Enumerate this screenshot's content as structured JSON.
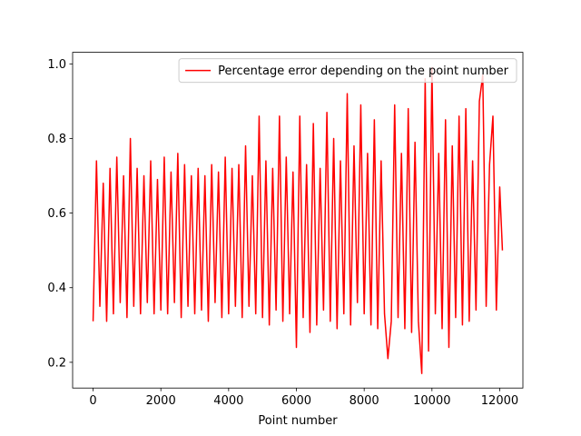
{
  "chart_data": {
    "type": "line",
    "xlabel": "Point number",
    "x": [
      0,
      100,
      200,
      300,
      400,
      500,
      600,
      700,
      800,
      900,
      1000,
      1100,
      1200,
      1300,
      1400,
      1500,
      1600,
      1700,
      1800,
      1900,
      2000,
      2100,
      2200,
      2300,
      2400,
      2500,
      2600,
      2700,
      2800,
      2900,
      3000,
      3100,
      3200,
      3300,
      3400,
      3500,
      3600,
      3700,
      3800,
      3900,
      4000,
      4100,
      4200,
      4300,
      4400,
      4500,
      4600,
      4700,
      4800,
      4900,
      5000,
      5100,
      5200,
      5300,
      5400,
      5500,
      5600,
      5700,
      5800,
      5900,
      6000,
      6100,
      6200,
      6300,
      6400,
      6500,
      6600,
      6700,
      6800,
      6900,
      7000,
      7100,
      7200,
      7300,
      7400,
      7500,
      7600,
      7700,
      7800,
      7900,
      8000,
      8100,
      8200,
      8300,
      8400,
      8500,
      8600,
      8700,
      8800,
      8900,
      9000,
      9100,
      9200,
      9300,
      9400,
      9500,
      9600,
      9700,
      9800,
      9900,
      10000,
      10100,
      10200,
      10300,
      10400,
      10500,
      10600,
      10700,
      10800,
      10900,
      11000,
      11100,
      11200,
      11300,
      11400,
      11500,
      11600,
      11700,
      11800,
      11900,
      12000,
      12080
    ],
    "series": [
      {
        "name": "Percentage error depending on the point number",
        "color": "#ff0000",
        "values": [
          0.31,
          0.74,
          0.35,
          0.68,
          0.31,
          0.72,
          0.33,
          0.75,
          0.36,
          0.7,
          0.32,
          0.8,
          0.35,
          0.72,
          0.33,
          0.7,
          0.36,
          0.74,
          0.33,
          0.69,
          0.34,
          0.75,
          0.33,
          0.71,
          0.36,
          0.76,
          0.32,
          0.73,
          0.35,
          0.7,
          0.33,
          0.72,
          0.34,
          0.7,
          0.31,
          0.73,
          0.36,
          0.71,
          0.32,
          0.75,
          0.33,
          0.72,
          0.35,
          0.73,
          0.32,
          0.78,
          0.35,
          0.7,
          0.33,
          0.86,
          0.32,
          0.74,
          0.3,
          0.72,
          0.34,
          0.86,
          0.31,
          0.75,
          0.33,
          0.71,
          0.24,
          0.86,
          0.32,
          0.73,
          0.28,
          0.84,
          0.3,
          0.72,
          0.34,
          0.87,
          0.31,
          0.8,
          0.29,
          0.74,
          0.33,
          0.92,
          0.3,
          0.78,
          0.36,
          0.89,
          0.33,
          0.76,
          0.3,
          0.85,
          0.29,
          0.74,
          0.33,
          0.21,
          0.31,
          0.89,
          0.32,
          0.76,
          0.29,
          0.88,
          0.28,
          0.79,
          0.31,
          0.17,
          0.96,
          0.23,
          0.99,
          0.33,
          0.76,
          0.29,
          0.85,
          0.24,
          0.78,
          0.32,
          0.86,
          0.3,
          0.88,
          0.31,
          0.74,
          0.34,
          0.9,
          0.97,
          0.35,
          0.73,
          0.86,
          0.34,
          0.67,
          0.5
        ]
      }
    ],
    "xlim": [
      -604,
      12684
    ],
    "ylim": [
      0.131,
      1.031
    ],
    "xticks": [
      0,
      2000,
      4000,
      6000,
      8000,
      10000,
      12000
    ],
    "yticks": [
      0.2,
      0.4,
      0.6,
      0.8,
      {
        "value": 1,
        "label": "1.0"
      }
    ],
    "legend": "upper right",
    "grid": false
  }
}
